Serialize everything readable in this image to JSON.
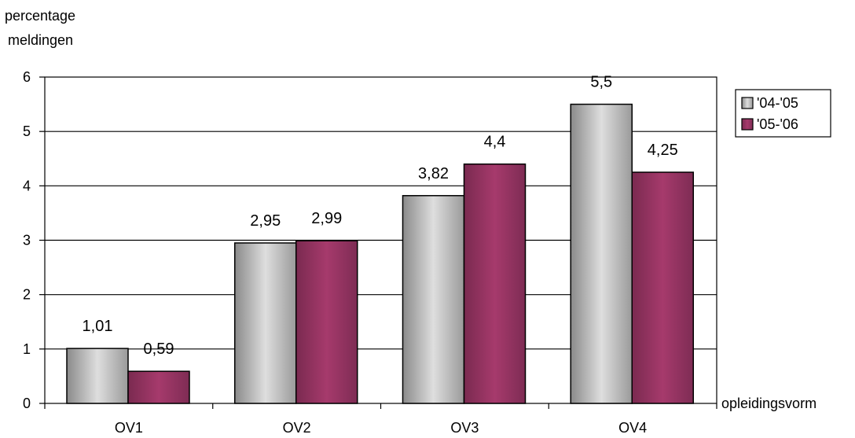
{
  "chart_data": {
    "type": "bar",
    "ylabel": "percentage meldingen",
    "ylabel_lines": [
      "percentage",
      "meldingen"
    ],
    "xlabel": "opleidingsvorm",
    "categories": [
      "OV1",
      "OV2",
      "OV3",
      "OV4"
    ],
    "series": [
      {
        "name": "'04-'05",
        "values": [
          1.01,
          2.95,
          3.82,
          5.5
        ],
        "labels": [
          "1,01",
          "2,95",
          "3,82",
          "5,5"
        ],
        "color": "#c0c0c0"
      },
      {
        "name": "'05-'06",
        "values": [
          0.59,
          2.99,
          4.4,
          4.25
        ],
        "labels": [
          "0,59",
          "2,99",
          "4,4",
          "4,25"
        ],
        "color": "#993366"
      }
    ],
    "ylim": [
      0,
      6
    ],
    "yticks": [
      0,
      1,
      2,
      3,
      4,
      5,
      6
    ],
    "grid": true,
    "legend": "right"
  }
}
